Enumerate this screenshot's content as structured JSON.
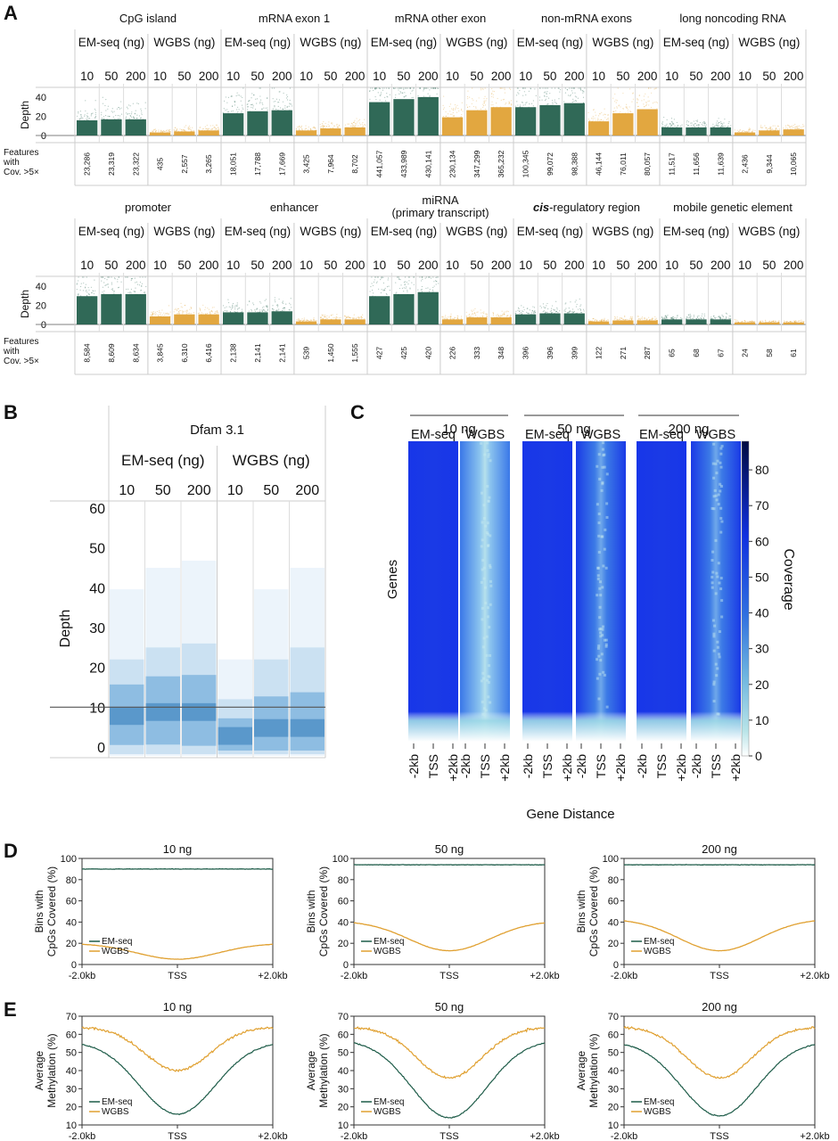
{
  "panel_labels": {
    "a": "A",
    "b": "B",
    "c": "C",
    "d": "D",
    "e": "E"
  },
  "colors": {
    "em": "#1e5c49",
    "wgbs": "#e0a030",
    "c_blue": "#1133dd",
    "b_blue": "#4a90c8"
  },
  "panel_a": {
    "group_labels": {
      "em": "EM-seq (ng)",
      "wgbs": "WGBS (ng)"
    },
    "doses": [
      "10",
      "50",
      "200"
    ],
    "ylabel": "Depth",
    "y_ticks": [
      "40",
      "20",
      "0"
    ],
    "feat_label": [
      "Features",
      "with",
      "Cov. >5×"
    ],
    "rows": [
      {
        "categories": [
          {
            "name": "CpG island",
            "em": [
              23286,
              23319,
              23322
            ],
            "wgbs": [
              435,
              2557,
              3265
            ],
            "em_labels": [
              "23,286",
              "23,319",
              "23,322"
            ],
            "wgbs_labels": [
              "435",
              "2,557",
              "3,265"
            ],
            "em_depth": [
              15,
              16,
              16
            ],
            "wgbs_depth": [
              3,
              4,
              5
            ]
          },
          {
            "name": "mRNA exon 1",
            "em": [
              18051,
              17788,
              17669
            ],
            "wgbs": [
              3425,
              7964,
              8702
            ],
            "em_labels": [
              "18,051",
              "17,788",
              "17,669"
            ],
            "wgbs_labels": [
              "3,425",
              "7,964",
              "8,702"
            ],
            "em_depth": [
              22,
              24,
              25
            ],
            "wgbs_depth": [
              5,
              7,
              8
            ]
          },
          {
            "name": "mRNA other exon",
            "em": [
              441057,
              433989,
              430141
            ],
            "wgbs": [
              230134,
              347299,
              365232
            ],
            "em_labels": [
              "441,057",
              "433,989",
              "430,141"
            ],
            "wgbs_labels": [
              "230,134",
              "347,299",
              "365,232"
            ],
            "em_depth": [
              33,
              36,
              38
            ],
            "wgbs_depth": [
              18,
              25,
              28
            ]
          },
          {
            "name": "non-mRNA exons",
            "em": [
              100345,
              99072,
              98388
            ],
            "wgbs": [
              46144,
              76011,
              80057
            ],
            "em_labels": [
              "100,345",
              "99,072",
              "98,388"
            ],
            "wgbs_labels": [
              "46,144",
              "76,011",
              "80,057"
            ],
            "em_depth": [
              28,
              30,
              32
            ],
            "wgbs_depth": [
              14,
              22,
              26
            ]
          },
          {
            "name": "long noncoding RNA",
            "em": [
              11517,
              11656,
              11639
            ],
            "wgbs": [
              2436,
              9344,
              10065
            ],
            "em_labels": [
              "11,517",
              "11,656",
              "11,639"
            ],
            "wgbs_labels": [
              "2,436",
              "9,344",
              "10,065"
            ],
            "em_depth": [
              8,
              8,
              8
            ],
            "wgbs_depth": [
              3,
              5,
              6
            ]
          }
        ]
      },
      {
        "categories": [
          {
            "name": "promoter",
            "em": [
              8584,
              8609,
              8634
            ],
            "wgbs": [
              3845,
              6310,
              6416
            ],
            "em_labels": [
              "8,584",
              "8,609",
              "8,634"
            ],
            "wgbs_labels": [
              "3,845",
              "6,310",
              "6,416"
            ],
            "em_depth": [
              28,
              30,
              30
            ],
            "wgbs_depth": [
              8,
              10,
              10
            ]
          },
          {
            "name": "enhancer",
            "em": [
              2138,
              2141,
              2141
            ],
            "wgbs": [
              539,
              1450,
              1555
            ],
            "em_labels": [
              "2,138",
              "2,141",
              "2,141"
            ],
            "wgbs_labels": [
              "539",
              "1,450",
              "1,555"
            ],
            "em_depth": [
              12,
              12,
              13
            ],
            "wgbs_depth": [
              3,
              5,
              5
            ]
          },
          {
            "name": "miRNA\n(primary transcript)",
            "name_lines": [
              "miRNA",
              "(primary transcript)"
            ],
            "em": [
              427,
              425,
              420
            ],
            "wgbs": [
              226,
              333,
              348
            ],
            "em_labels": [
              "427",
              "425",
              "420"
            ],
            "wgbs_labels": [
              "226",
              "333",
              "348"
            ],
            "em_depth": [
              28,
              30,
              32
            ],
            "wgbs_depth": [
              5,
              7,
              7
            ]
          },
          {
            "name": "cis-regulatory region",
            "name_italic": "cis",
            "name_rest": "-regulatory region",
            "em": [
              396,
              396,
              399
            ],
            "wgbs": [
              122,
              271,
              287
            ],
            "em_labels": [
              "396",
              "396",
              "399"
            ],
            "wgbs_labels": [
              "122",
              "271",
              "287"
            ],
            "em_depth": [
              10,
              11,
              11
            ],
            "wgbs_depth": [
              3,
              4,
              4
            ]
          },
          {
            "name": "mobile genetic element",
            "em": [
              65,
              68,
              67
            ],
            "wgbs": [
              24,
              58,
              61
            ],
            "em_labels": [
              "65",
              "68",
              "67"
            ],
            "wgbs_labels": [
              "24",
              "58",
              "61"
            ],
            "em_depth": [
              5,
              5,
              5
            ],
            "wgbs_depth": [
              2,
              2,
              2
            ]
          }
        ]
      }
    ]
  },
  "panel_b": {
    "title": "Dfam 3.1",
    "groups": [
      "EM-seq (ng)",
      "WGBS (ng)"
    ],
    "doses": [
      "10",
      "50",
      "200",
      "10",
      "50",
      "200"
    ],
    "ylabel": "Depth",
    "y_ticks": [
      "60",
      "50",
      "40",
      "30",
      "20",
      "10",
      "0"
    ],
    "ylim": [
      0,
      60
    ],
    "reference_line": 10,
    "chart_data": {
      "type": "violin",
      "series": [
        {
          "name": "EM-seq",
          "x": [
            "10",
            "50",
            "200"
          ],
          "center": [
            8,
            9,
            9
          ],
          "spread": [
            22,
            25,
            26
          ]
        },
        {
          "name": "WGBS",
          "x": [
            "10",
            "50",
            "200"
          ],
          "center": [
            3,
            5,
            5
          ],
          "spread": [
            12,
            22,
            25
          ]
        }
      ]
    }
  },
  "panel_c": {
    "doses": [
      "10 ng",
      "50 ng",
      "200 ng"
    ],
    "methods": [
      "EM-seq",
      "WGBS",
      "EM-seq",
      "WGBS",
      "EM-seq",
      "WGBS"
    ],
    "ylabel": "Genes",
    "xlabel": "Gene Distance",
    "x_ticks": [
      "-2kb",
      "TSS",
      "+2kb"
    ],
    "colorbar_label": "Coverage",
    "colorbar_ticks": [
      "80",
      "70",
      "60",
      "50",
      "40",
      "30",
      "20",
      "10",
      "0"
    ],
    "colorbar_range": [
      0,
      88
    ]
  },
  "panel_d": {
    "ylabel_lines": [
      "Bins with",
      "CpGs Covered (%)"
    ],
    "y_ticks": [
      "100",
      "80",
      "60",
      "40",
      "20",
      "0"
    ],
    "x_ticks": [
      "-2.0kb",
      "TSS",
      "+2.0kb"
    ],
    "legend": [
      "EM-seq",
      "WGBS"
    ],
    "charts": [
      {
        "title": "10 ng",
        "em_level": 90,
        "wgbs_edge": 20,
        "wgbs_min": 5
      },
      {
        "title": "50 ng",
        "em_level": 94,
        "wgbs_edge": 41,
        "wgbs_min": 13
      },
      {
        "title": "200 ng",
        "em_level": 94,
        "wgbs_edge": 43,
        "wgbs_min": 13
      }
    ]
  },
  "panel_e": {
    "ylabel_lines": [
      "Average",
      "Methylation (%)"
    ],
    "y_ticks": [
      "70",
      "60",
      "50",
      "40",
      "30",
      "20",
      "10"
    ],
    "x_ticks": [
      "-2.0kb",
      "TSS",
      "+2.0kb"
    ],
    "legend": [
      "EM-seq",
      "WGBS"
    ],
    "charts": [
      {
        "title": "10 ng",
        "em_edge": 56,
        "em_min": 16,
        "wgbs_edge": 64,
        "wgbs_min": 40
      },
      {
        "title": "50 ng",
        "em_edge": 57,
        "em_min": 14,
        "wgbs_edge": 64,
        "wgbs_min": 36
      },
      {
        "title": "200 ng",
        "em_edge": 56,
        "em_min": 15,
        "wgbs_edge": 64,
        "wgbs_min": 36
      }
    ]
  }
}
